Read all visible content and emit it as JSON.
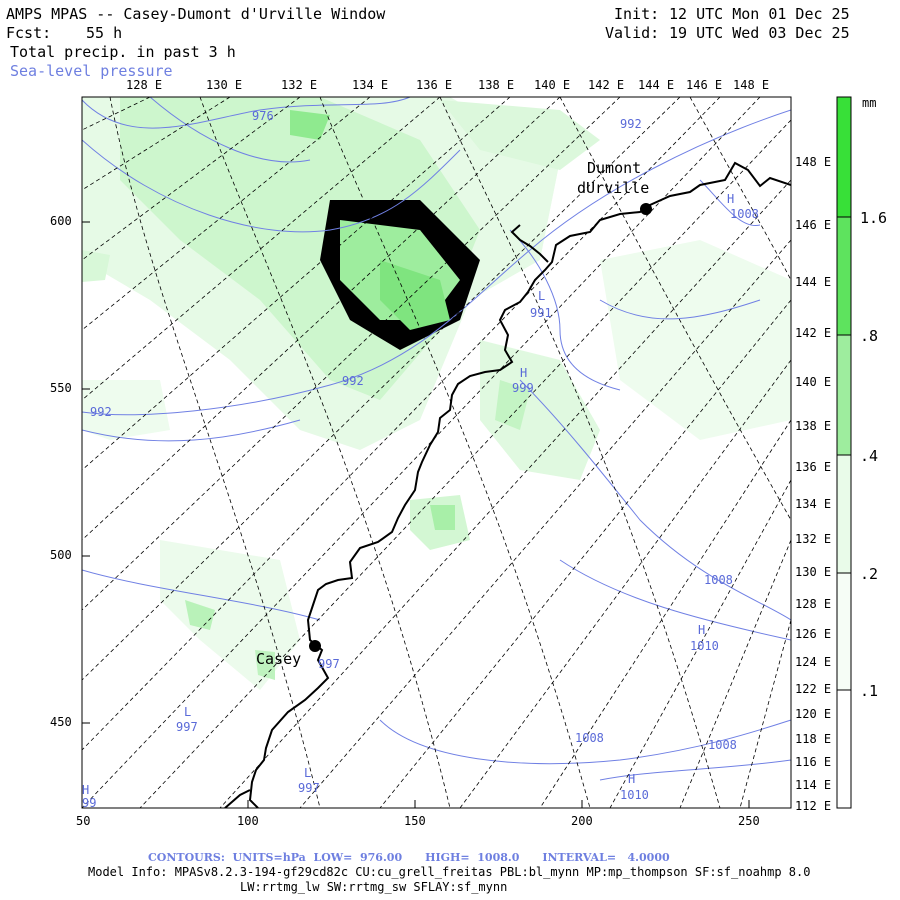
{
  "header": {
    "title": "AMPS MPAS -- Casey-Dumont d'Urville Window",
    "fcst_label": "Fcst:",
    "fcst_value": "55 h",
    "field_name": "Total precip. in past 3 h",
    "overlay_name": "Sea-level pressure",
    "init_label": "Init:",
    "init_value": "12 UTC Mon 01 Dec 25",
    "valid_label": "Valid:",
    "valid_value": "19 UTC Wed 03 Dec 25"
  },
  "colorbar": {
    "units": "mm",
    "levels": [
      ".1",
      ".2",
      ".4",
      ".8",
      "1.6"
    ],
    "colors": [
      "#ffffff",
      "#e9fbe9",
      "#c7f5c7",
      "#8fea8f",
      "#38e038"
    ]
  },
  "axes": {
    "x_ticks": [
      "50",
      "100",
      "150",
      "200",
      "250"
    ],
    "y_ticks": [
      "450",
      "500",
      "550",
      "600"
    ],
    "lon_top": [
      "128 E",
      "130 E",
      "132 E",
      "134 E",
      "136 E",
      "138 E",
      "140 E",
      "142 E",
      "144 E",
      "146 E",
      "148 E"
    ],
    "lon_right": [
      "148 E",
      "146 E",
      "144 E",
      "142 E",
      "140 E",
      "138 E",
      "136 E",
      "134 E",
      "132 E",
      "130 E",
      "128 E",
      "126 E",
      "124 E",
      "122 E",
      "120 E",
      "118 E",
      "116 E",
      "114 E",
      "112 E"
    ]
  },
  "stations": [
    {
      "name": "Casey",
      "label": "Casey"
    },
    {
      "name": "Dumont",
      "label": "Dumont"
    },
    {
      "name": "dUrville",
      "label": "dUrville"
    }
  ],
  "pressure_labels": [
    {
      "text": "976"
    },
    {
      "text": "992"
    },
    {
      "text": "992"
    },
    {
      "text": "992"
    },
    {
      "text": "L"
    },
    {
      "text": "991"
    },
    {
      "text": "H"
    },
    {
      "text": "999"
    },
    {
      "text": "H"
    },
    {
      "text": "1008"
    },
    {
      "text": "1008"
    },
    {
      "text": "H"
    },
    {
      "text": "1010"
    },
    {
      "text": "1008"
    },
    {
      "text": "1008"
    },
    {
      "text": "H"
    },
    {
      "text": "1010"
    },
    {
      "text": "L"
    },
    {
      "text": "997"
    },
    {
      "text": "L"
    },
    {
      "text": "997"
    },
    {
      "text": "997"
    },
    {
      "text": "H"
    },
    {
      "text": "99"
    }
  ],
  "footer": {
    "contours": "CONTOURS:  UNITS=hPa  LOW=  976.00      HIGH=  1008.0      INTERVAL=   4.0000",
    "model_info_1": "Model Info: MPASv8.2.3-194-gf29cd82c CU:cu_grell_freitas PBL:bl_mynn MP:mp_thompson SF:sf_noahmp 8.0",
    "model_info_2": "LW:rrtmg_lw SW:rrtmg_sw SFLAY:sf_mynn"
  }
}
